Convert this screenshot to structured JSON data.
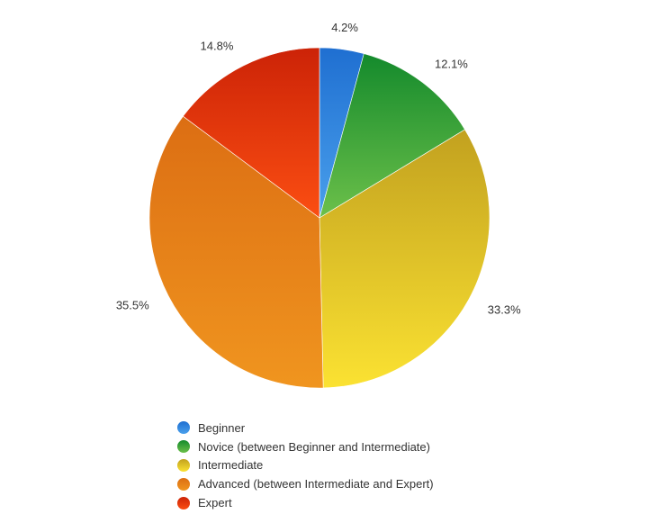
{
  "chart_data": {
    "type": "pie",
    "title": "",
    "start_angle_deg": 0,
    "direction": "clockwise",
    "legend_position": "bottom",
    "slices": [
      {
        "name": "Beginner",
        "label": "4.2%",
        "value": 4.2,
        "color_light": "#4aa0ec",
        "color_dark": "#1f6fd1"
      },
      {
        "name": "Novice (between Beginner and Intermediate)",
        "label": "12.1%",
        "value": 12.1,
        "color_light": "#6cc04a",
        "color_dark": "#148a2c"
      },
      {
        "name": "Intermediate",
        "label": "33.3%",
        "value": 33.3,
        "color_light": "#fbe232",
        "color_dark": "#c2a11f"
      },
      {
        "name": "Advanced (between Intermediate and Expert)",
        "label": "35.5%",
        "value": 35.5,
        "color_light": "#f0951f",
        "color_dark": "#dc6e13"
      },
      {
        "name": "Expert",
        "label": "14.8%",
        "value": 14.8,
        "color_light": "#fb4e12",
        "color_dark": "#cc2307"
      }
    ]
  }
}
